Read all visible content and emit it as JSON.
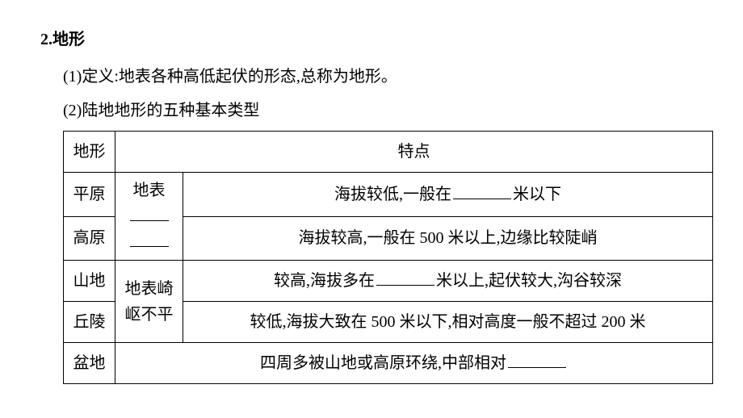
{
  "heading": "2.地形",
  "item1": "(1)定义:地表各种高低起伏的形态,总称为地形。",
  "item2": "(2)陆地地形的五种基本类型",
  "table": {
    "header": {
      "type": "地形",
      "feature": "特点"
    },
    "surface_flat_prefix": "地表",
    "surface_rough": "地表崎岖不平",
    "rows": {
      "pingyuan": {
        "name": "平原",
        "desc_a": "海拔较低,一般在",
        "desc_b": "米以下"
      },
      "gaoyuan": {
        "name": "高原",
        "desc": "海拔较高,一般在 500 米以上,边缘比较陡峭"
      },
      "shandi": {
        "name": "山地",
        "desc_a": "较高,海拔多在",
        "desc_b": "米以上,起伏较大,沟谷较深"
      },
      "qiuling": {
        "name": "丘陵",
        "desc": "较低,海拔大致在 500 米以下,相对高度一般不超过 200 米"
      },
      "pendi": {
        "name": "盆地",
        "desc": "四周多被山地或高原环绕,中部相对"
      }
    }
  }
}
